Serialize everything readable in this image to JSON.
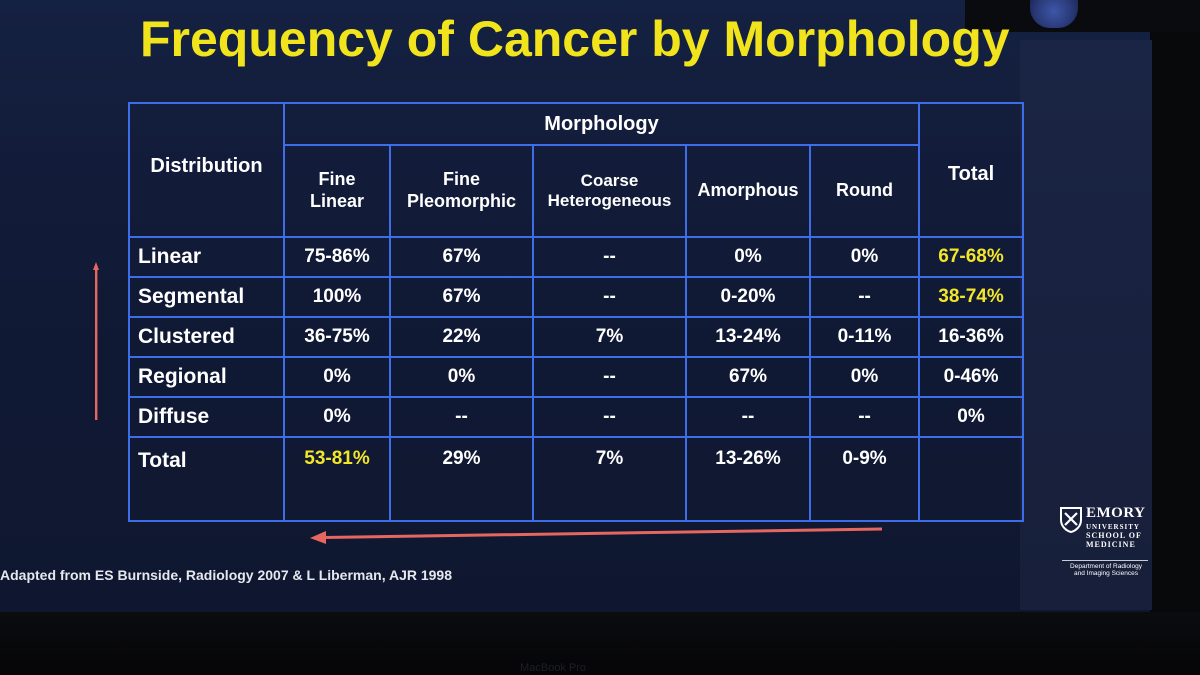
{
  "slide": {
    "title": "Frequency of Cancer by Morphology",
    "citation": "Adapted from ES Burnside, Radiology 2007 & L Liberman, AJR 1998"
  },
  "table": {
    "distribution_header": "Distribution",
    "morphology_header": "Morphology",
    "total_header": "Total",
    "columns": [
      "Fine Linear",
      "Fine Pleomorphic",
      "Coarse Heterogeneous",
      "Amorphous",
      "Round"
    ],
    "rows": [
      {
        "label": "Linear",
        "values": [
          "75-86%",
          "67%",
          "--",
          "0%",
          "0%"
        ],
        "total": "67-68%"
      },
      {
        "label": "Segmental",
        "values": [
          "100%",
          "67%",
          "--",
          "0-20%",
          "--"
        ],
        "total": "38-74%"
      },
      {
        "label": "Clustered",
        "values": [
          "36-75%",
          "22%",
          "7%",
          "13-24%",
          "0-11%"
        ],
        "total": "16-36%"
      },
      {
        "label": "Regional",
        "values": [
          "0%",
          "0%",
          "--",
          "67%",
          "0%"
        ],
        "total": "0-46%"
      },
      {
        "label": "Diffuse",
        "values": [
          "0%",
          "--",
          "--",
          "--",
          "--"
        ],
        "total": "0%"
      },
      {
        "label": "Total",
        "values": [
          "53-81%",
          "29%",
          "7%",
          "13-26%",
          "0-9%"
        ],
        "total": ""
      }
    ],
    "highlight_color": "#f3e629"
  },
  "logo": {
    "name": "EMORY",
    "sub_line1": "UNIVERSITY",
    "sub_line2": "SCHOOL OF",
    "sub_line3": "MEDICINE",
    "dept_line1": "Department of Radiology",
    "dept_line2": "and Imaging Sciences"
  },
  "device": {
    "label": "MacBook Pro"
  },
  "colors": {
    "title": "#f1e41c",
    "grid": "#3d6ee8",
    "arrow": "#e5675f",
    "slide_bg": "#131d3a"
  }
}
